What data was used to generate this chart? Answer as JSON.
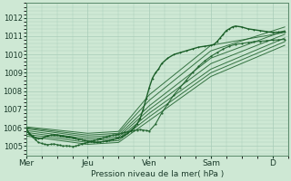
{
  "background_color": "#cee8d4",
  "plot_bg_color": "#cee8d4",
  "grid_color": "#a8ccb8",
  "line_color": "#1a5e28",
  "ylim": [
    1004.5,
    1012.8
  ],
  "xlim": [
    0.0,
    4.25
  ],
  "ylabel_text": "Pression niveau de la mer( hPa )",
  "yticks": [
    1005,
    1006,
    1007,
    1008,
    1009,
    1010,
    1011,
    1012
  ],
  "xtick_labels": [
    "Mer",
    "Jeu",
    "Ven",
    "Sam",
    "D"
  ],
  "xtick_positions": [
    0.0,
    1.0,
    2.0,
    3.0,
    4.0
  ],
  "figsize": [
    3.2,
    2.0
  ],
  "dpi": 100,
  "lines": [
    {
      "t": [
        0.0,
        1.0,
        1.5,
        2.0,
        3.0,
        4.2
      ],
      "y": [
        1005.95,
        1005.5,
        1005.6,
        1007.2,
        1009.8,
        1011.3
      ],
      "lw": 0.7,
      "noise": 0.0
    },
    {
      "t": [
        0.0,
        1.0,
        1.5,
        2.0,
        3.0,
        4.2
      ],
      "y": [
        1005.85,
        1005.4,
        1005.5,
        1007.0,
        1009.5,
        1011.1
      ],
      "lw": 0.7,
      "noise": 0.0
    },
    {
      "t": [
        0.0,
        1.0,
        1.5,
        2.0,
        3.0,
        4.2
      ],
      "y": [
        1005.75,
        1005.3,
        1005.4,
        1006.8,
        1009.2,
        1010.9
      ],
      "lw": 0.7,
      "noise": 0.0
    },
    {
      "t": [
        0.0,
        1.0,
        1.5,
        2.0,
        3.0,
        4.2
      ],
      "y": [
        1005.65,
        1005.2,
        1005.3,
        1006.6,
        1009.0,
        1010.7
      ],
      "lw": 0.7,
      "noise": 0.0
    },
    {
      "t": [
        0.0,
        1.0,
        1.5,
        2.0,
        3.0,
        4.2
      ],
      "y": [
        1005.55,
        1005.1,
        1005.2,
        1006.4,
        1008.8,
        1010.5
      ],
      "lw": 0.7,
      "noise": 0.0
    },
    {
      "t": [
        0.0,
        1.0,
        1.5,
        2.0,
        3.0,
        4.2
      ],
      "y": [
        1006.0,
        1005.6,
        1005.7,
        1007.5,
        1010.2,
        1011.5
      ],
      "lw": 0.7,
      "noise": 0.0
    },
    {
      "t": [
        0.0,
        1.0,
        1.5,
        2.0,
        3.0,
        4.2
      ],
      "y": [
        1006.05,
        1005.7,
        1005.8,
        1007.8,
        1010.5,
        1011.2
      ],
      "lw": 0.7,
      "noise": 0.0
    }
  ],
  "main_t": [
    0.0,
    0.05,
    0.1,
    0.15,
    0.2,
    0.25,
    0.3,
    0.35,
    0.4,
    0.45,
    0.5,
    0.55,
    0.6,
    0.65,
    0.7,
    0.75,
    0.8,
    0.85,
    0.9,
    0.95,
    1.0,
    1.05,
    1.1,
    1.15,
    1.2,
    1.25,
    1.3,
    1.35,
    1.4,
    1.45,
    1.5,
    1.55,
    1.6,
    1.65,
    1.7,
    1.75,
    1.8,
    1.85,
    1.9,
    1.95,
    2.0,
    2.05,
    2.1,
    2.15,
    2.2,
    2.3,
    2.4,
    2.5,
    2.6,
    2.7,
    2.8,
    2.9,
    3.0,
    3.05,
    3.1,
    3.15,
    3.2,
    3.25,
    3.3,
    3.35,
    3.4,
    3.5,
    3.6,
    3.7,
    3.8,
    3.9,
    4.0,
    4.1,
    4.2
  ],
  "main_y": [
    1005.95,
    1005.7,
    1005.55,
    1005.45,
    1005.4,
    1005.42,
    1005.5,
    1005.55,
    1005.6,
    1005.62,
    1005.6,
    1005.58,
    1005.55,
    1005.52,
    1005.5,
    1005.48,
    1005.42,
    1005.38,
    1005.35,
    1005.3,
    1005.28,
    1005.25,
    1005.22,
    1005.2,
    1005.22,
    1005.25,
    1005.28,
    1005.3,
    1005.35,
    1005.4,
    1005.45,
    1005.5,
    1005.6,
    1005.7,
    1005.85,
    1006.0,
    1006.2,
    1006.5,
    1007.0,
    1007.6,
    1008.2,
    1008.7,
    1009.0,
    1009.2,
    1009.5,
    1009.8,
    1010.0,
    1010.1,
    1010.2,
    1010.3,
    1010.4,
    1010.45,
    1010.5,
    1010.55,
    1010.7,
    1010.9,
    1011.1,
    1011.3,
    1011.4,
    1011.5,
    1011.55,
    1011.5,
    1011.4,
    1011.35,
    1011.3,
    1011.25,
    1011.2,
    1011.22,
    1011.25
  ],
  "jagged_t": [
    0.0,
    0.05,
    0.1,
    0.15,
    0.2,
    0.25,
    0.3,
    0.35,
    0.4,
    0.45,
    0.5,
    0.55,
    0.6,
    0.65,
    0.7,
    0.75,
    0.8,
    0.85,
    0.9,
    0.95,
    1.0,
    1.05,
    1.1,
    1.15,
    1.2,
    1.25,
    1.3,
    1.35,
    1.4,
    1.45,
    1.5,
    1.55,
    1.6,
    1.65,
    1.7,
    1.75,
    1.8,
    1.85,
    1.9,
    1.95,
    2.0,
    2.1,
    2.2,
    2.3,
    2.4,
    2.5,
    2.6,
    2.7,
    2.8,
    2.9,
    3.0,
    3.1,
    3.2,
    3.3,
    3.4,
    3.5,
    3.6,
    3.7,
    3.8,
    3.9,
    4.0,
    4.1,
    4.2
  ],
  "jagged_y": [
    1005.95,
    1005.65,
    1005.5,
    1005.35,
    1005.2,
    1005.15,
    1005.1,
    1005.08,
    1005.1,
    1005.12,
    1005.08,
    1005.05,
    1005.0,
    1005.02,
    1005.0,
    1004.98,
    1005.0,
    1005.05,
    1005.1,
    1005.15,
    1005.2,
    1005.25,
    1005.3,
    1005.35,
    1005.4,
    1005.45,
    1005.5,
    1005.55,
    1005.6,
    1005.62,
    1005.65,
    1005.7,
    1005.75,
    1005.78,
    1005.82,
    1005.85,
    1005.88,
    1005.9,
    1005.88,
    1005.85,
    1005.82,
    1006.2,
    1006.8,
    1007.3,
    1007.8,
    1008.2,
    1008.6,
    1009.0,
    1009.35,
    1009.65,
    1009.9,
    1010.1,
    1010.3,
    1010.45,
    1010.55,
    1010.6,
    1010.65,
    1010.7,
    1010.72,
    1010.75,
    1010.78,
    1010.8,
    1010.82
  ]
}
